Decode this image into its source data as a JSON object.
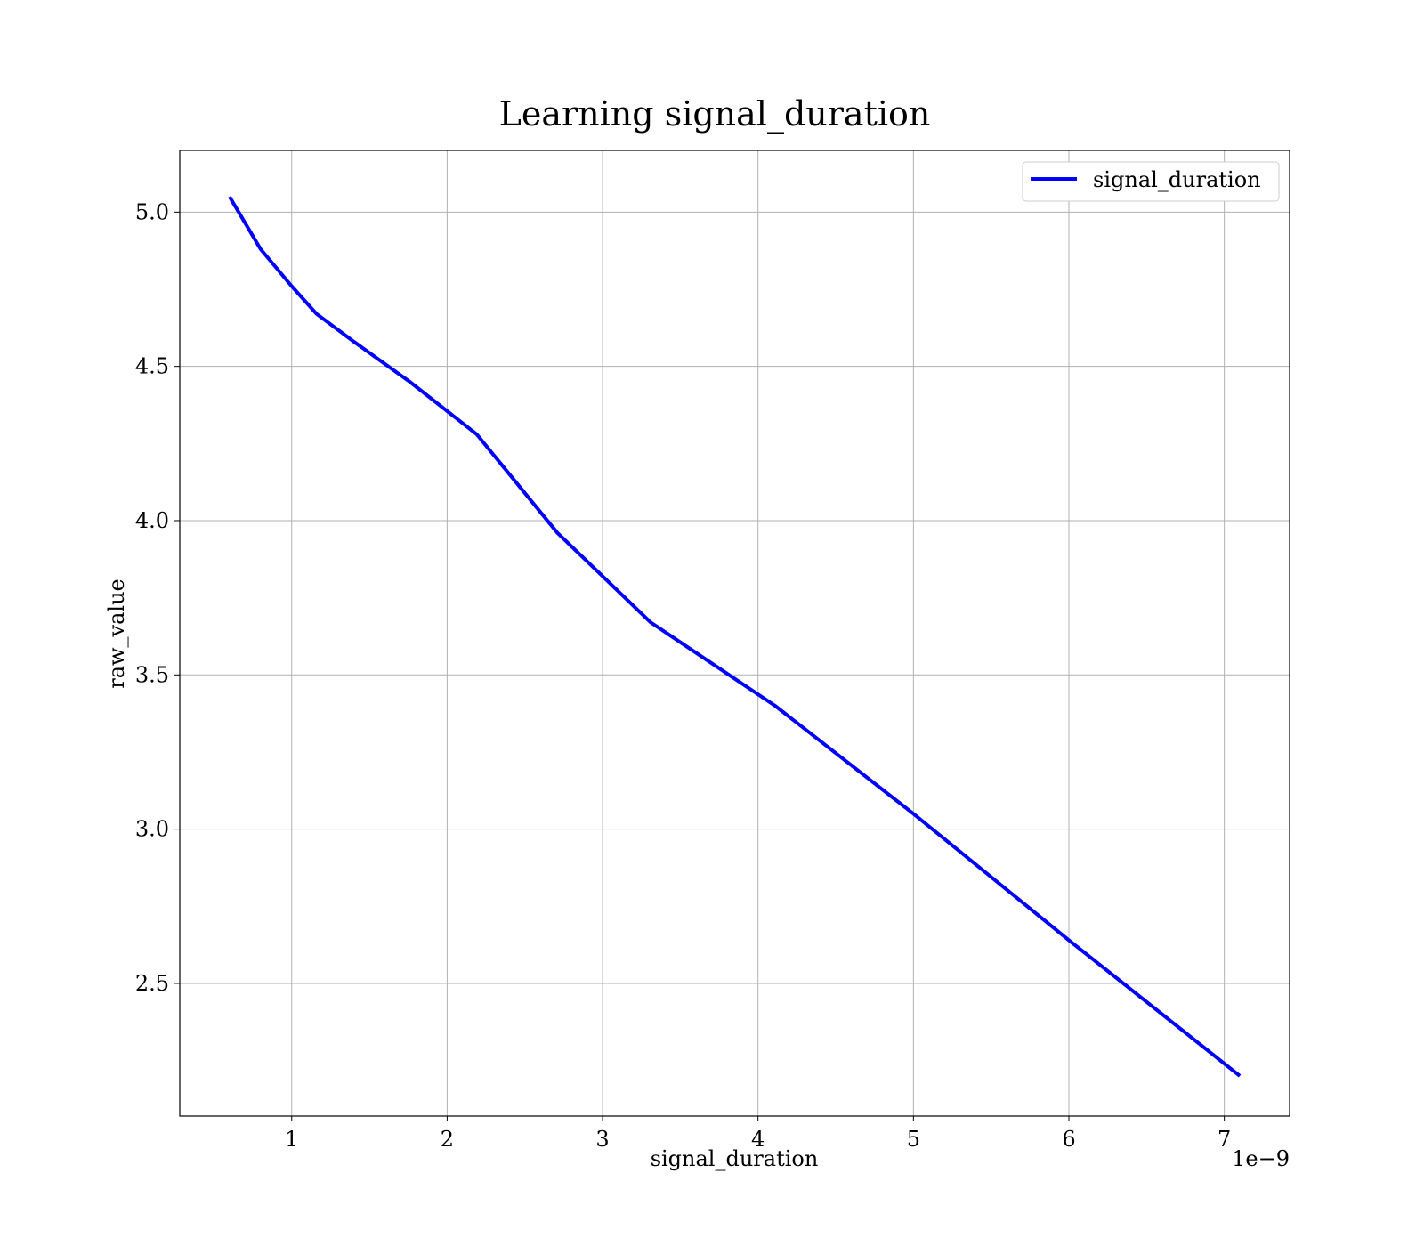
{
  "chart_data": {
    "type": "line",
    "title": "Learning signal_duration",
    "xlabel": "signal_duration",
    "ylabel": "raw_value",
    "x_offset_label": "1e−9",
    "xlim": [
      0.28,
      7.42
    ],
    "ylim": [
      2.07,
      5.2
    ],
    "x_ticks": [
      1,
      2,
      3,
      4,
      5,
      6,
      7
    ],
    "x_tick_labels": [
      "1",
      "2",
      "3",
      "4",
      "5",
      "6",
      "7"
    ],
    "y_ticks": [
      2.5,
      3.0,
      3.5,
      4.0,
      4.5,
      5.0
    ],
    "y_tick_labels": [
      "2.5",
      "3.0",
      "3.5",
      "4.0",
      "4.5",
      "5.0"
    ],
    "grid": true,
    "legend_position": "top-right",
    "series": [
      {
        "name": "signal_duration",
        "color": "#0000ff",
        "x": [
          0.6,
          0.8,
          1.0,
          1.16,
          1.4,
          1.76,
          2.19,
          2.71,
          3.31,
          4.11,
          5.0,
          6.0,
          7.1
        ],
        "y": [
          5.05,
          4.88,
          4.76,
          4.67,
          4.58,
          4.45,
          4.28,
          3.96,
          3.67,
          3.4,
          3.05,
          2.64,
          2.2
        ]
      }
    ]
  }
}
